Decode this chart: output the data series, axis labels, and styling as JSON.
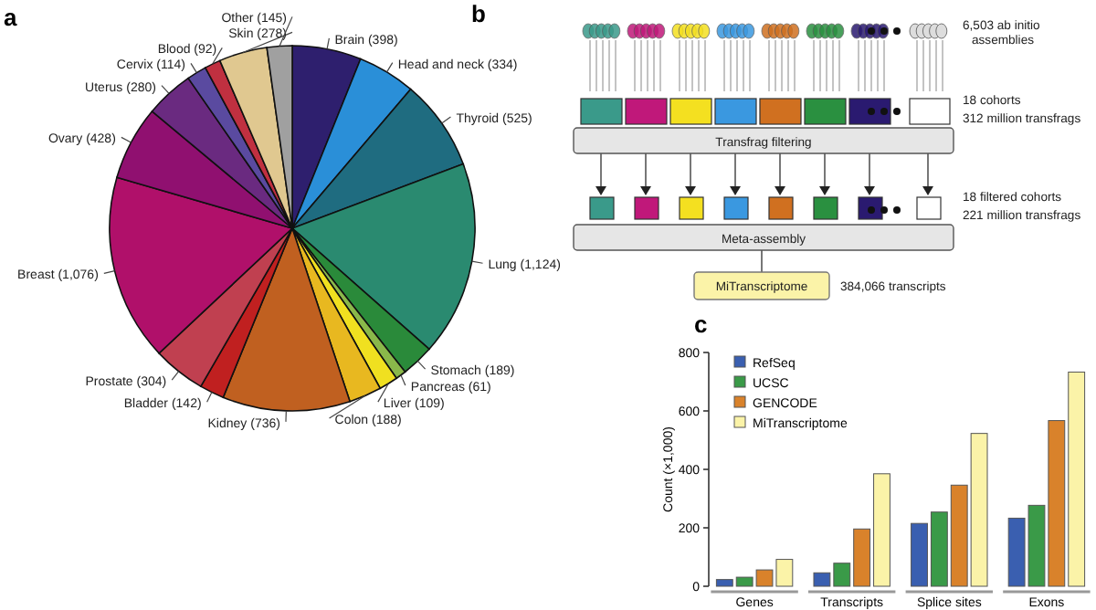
{
  "chart_data": [
    {
      "type": "pie",
      "title": "a",
      "value_labels": [
        "(398)",
        "(334)",
        "(525)",
        "(1,124)",
        "(189)",
        "(61)",
        "(109)",
        "(188)",
        "(736)",
        "(142)",
        "(304)",
        "(1,076)",
        "(428)",
        "(280)",
        "(114)",
        "(92)",
        "(278)",
        "(145)"
      ],
      "categories": [
        "Brain",
        "Head and neck",
        "Thyroid",
        "Lung",
        "Stomach",
        "Pancreas",
        "Liver",
        "Colon",
        "Kidney",
        "Bladder",
        "Prostate",
        "Breast",
        "Ovary",
        "Uterus",
        "Cervix",
        "Blood",
        "Skin",
        "Other"
      ],
      "values": [
        398,
        334,
        525,
        1124,
        189,
        61,
        109,
        188,
        736,
        142,
        304,
        1076,
        428,
        280,
        114,
        92,
        278,
        145
      ],
      "colors": [
        "#2e1f6e",
        "#2a8fd8",
        "#1f6c80",
        "#2a8a70",
        "#2a8a3a",
        "#8ab84a",
        "#f0e020",
        "#e8b820",
        "#c06020",
        "#c02020",
        "#c04050",
        "#b0106a",
        "#901070",
        "#6a2a80",
        "#5a4aa0",
        "#c03040",
        "#e0c890",
        "#a0a0a0"
      ]
    },
    {
      "type": "other",
      "title": "b",
      "annotations": [
        "6,503 ab initio assemblies",
        "18 cohorts",
        "312 million transfrags",
        "Transfrag filtering",
        "18 filtered cohorts",
        "221 million transfrags",
        "Meta-assembly",
        "MiTranscriptome",
        "384,066 transcripts"
      ]
    },
    {
      "type": "bar",
      "title": "c",
      "ylabel": "Count (×1,000)",
      "categories": [
        "Genes",
        "Transcripts",
        "Splice sites",
        "Exons"
      ],
      "ylim": [
        0,
        800
      ],
      "yticks": [
        0,
        200,
        400,
        600,
        800
      ],
      "legend": "top left",
      "series": [
        {
          "name": "RefSeq",
          "color": "#3a5fb0",
          "values": [
            23,
            46,
            215,
            233
          ]
        },
        {
          "name": "UCSC",
          "color": "#3a9a48",
          "values": [
            31,
            79,
            254,
            277
          ]
        },
        {
          "name": "GENCODE",
          "color": "#d9822b",
          "values": [
            56,
            196,
            346,
            567
          ]
        },
        {
          "name": "MiTranscriptome",
          "color": "#fbf3a8",
          "values": [
            92,
            385,
            523,
            733
          ]
        }
      ]
    }
  ]
}
